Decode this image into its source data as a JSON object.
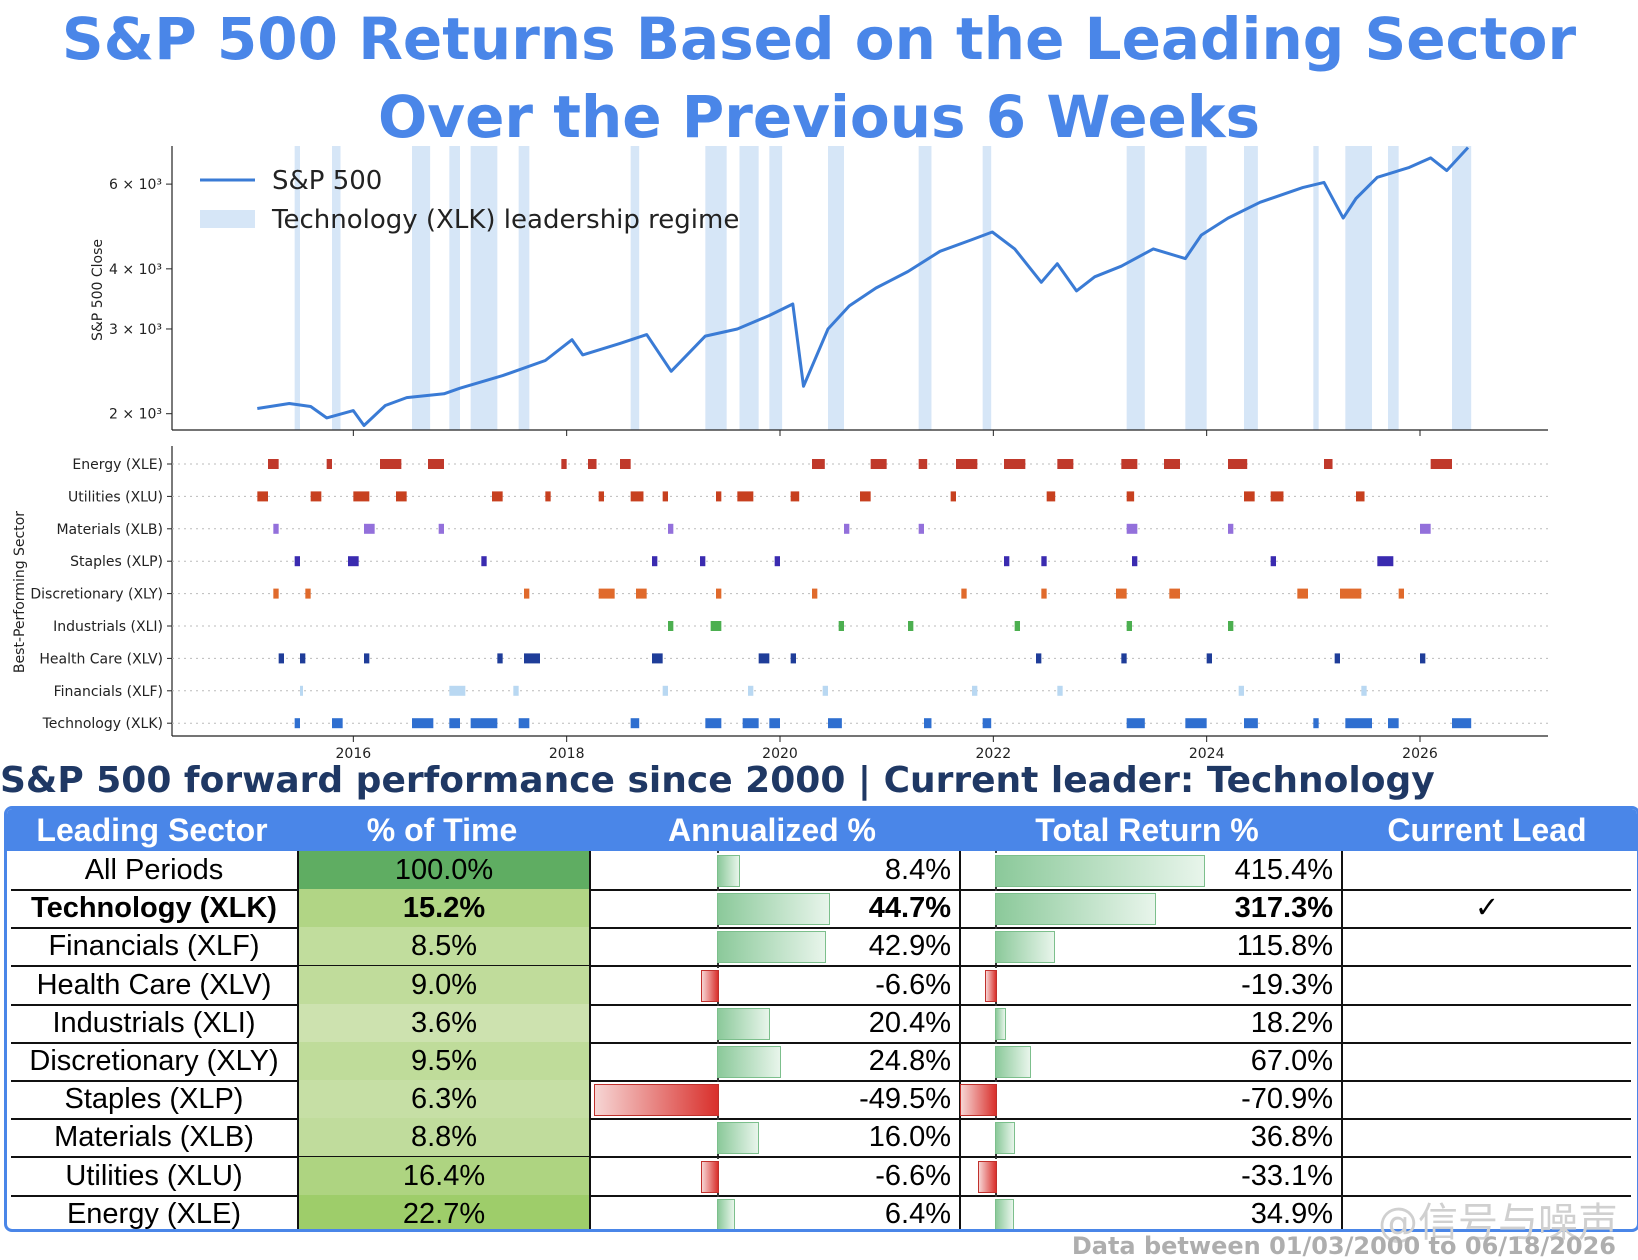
{
  "title": "S&P 500 Returns Based on the Leading Sector Over the Previous 6 Weeks",
  "subtitle": "S&P 500 forward performance since 2000 | Current leader: Technology",
  "footer": "Data between 01/03/2000 to 06/18/2026",
  "watermark": "@信号与噪声",
  "colors": {
    "accent": "#4a86e8",
    "line": "#3a7bd5",
    "regime": "#d6e6f7"
  },
  "chart_data": [
    {
      "type": "line",
      "ylabel": "S&P 500 Close",
      "y_scale": "log",
      "ylim": [
        1850,
        7200
      ],
      "xlim": [
        2014.3,
        2027.2
      ],
      "yticks": [
        {
          "v": 2000,
          "label": "2 × 10³"
        },
        {
          "v": 3000,
          "label": "3 × 10³"
        },
        {
          "v": 4000,
          "label": "4 × 10³"
        },
        {
          "v": 6000,
          "label": "6 × 10³"
        }
      ],
      "xticks": [
        "2016",
        "2018",
        "2020",
        "2022",
        "2024",
        "2026"
      ],
      "legend": {
        "placement": "top-left",
        "entries": [
          "S&P 500",
          "Technology (XLK) leadership regime"
        ]
      },
      "series": [
        {
          "name": "S&P 500",
          "x": [
            2015.1,
            2015.4,
            2015.6,
            2015.75,
            2016.0,
            2016.1,
            2016.3,
            2016.5,
            2016.85,
            2017.0,
            2017.4,
            2017.8,
            2018.05,
            2018.15,
            2018.5,
            2018.75,
            2018.98,
            2019.3,
            2019.6,
            2019.9,
            2020.12,
            2020.22,
            2020.45,
            2020.65,
            2020.9,
            2021.2,
            2021.5,
            2021.8,
            2021.99,
            2022.2,
            2022.45,
            2022.6,
            2022.78,
            2022.95,
            2023.2,
            2023.5,
            2023.8,
            2023.95,
            2024.2,
            2024.5,
            2024.9,
            2025.1,
            2025.28,
            2025.4,
            2025.6,
            2025.9,
            2026.1,
            2026.25,
            2026.45
          ],
          "y": [
            2050,
            2100,
            2070,
            1960,
            2030,
            1890,
            2080,
            2160,
            2200,
            2260,
            2400,
            2580,
            2850,
            2650,
            2800,
            2920,
            2450,
            2900,
            3000,
            3200,
            3380,
            2280,
            3000,
            3350,
            3650,
            3950,
            4350,
            4600,
            4770,
            4400,
            3750,
            4100,
            3600,
            3850,
            4050,
            4400,
            4200,
            4700,
            5100,
            5500,
            5900,
            6050,
            5100,
            5600,
            6200,
            6500,
            6800,
            6400,
            7150
          ]
        }
      ],
      "regimes": [
        [
          2015.45,
          2015.5
        ],
        [
          2015.8,
          2015.88
        ],
        [
          2016.55,
          2016.72
        ],
        [
          2016.9,
          2017.0
        ],
        [
          2017.1,
          2017.35
        ],
        [
          2017.55,
          2017.65
        ],
        [
          2018.6,
          2018.68
        ],
        [
          2019.3,
          2019.5
        ],
        [
          2019.62,
          2019.8
        ],
        [
          2019.9,
          2020.02
        ],
        [
          2020.45,
          2020.6
        ],
        [
          2021.3,
          2021.42
        ],
        [
          2021.9,
          2021.98
        ],
        [
          2023.25,
          2023.42
        ],
        [
          2023.8,
          2024.0
        ],
        [
          2024.35,
          2024.48
        ],
        [
          2025.0,
          2025.05
        ],
        [
          2025.3,
          2025.55
        ],
        [
          2025.7,
          2025.8
        ],
        [
          2026.3,
          2026.48
        ]
      ]
    },
    {
      "type": "scatter",
      "ylabel": "Best-Performing Sector",
      "xticks": [
        "2016",
        "2018",
        "2020",
        "2022",
        "2024",
        "2026"
      ],
      "categories": [
        "Energy (XLE)",
        "Utilities (XLU)",
        "Materials (XLB)",
        "Staples (XLP)",
        "Discretionary (XLY)",
        "Industrials (XLI)",
        "Health Care (XLV)",
        "Financials (XLF)",
        "Technology (XLK)"
      ],
      "marker_colors": [
        "#c0392b",
        "#c7401f",
        "#9370db",
        "#3a2bb0",
        "#e06a2c",
        "#4caf50",
        "#1f3d99",
        "#b9d8f2",
        "#2f6fd0"
      ],
      "periods": [
        [
          [
            2015.2,
            2015.3
          ],
          [
            2015.75,
            2015.8
          ],
          [
            2016.25,
            2016.45
          ],
          [
            2016.7,
            2016.85
          ],
          [
            2017.95,
            2018.0
          ],
          [
            2018.2,
            2018.28
          ],
          [
            2018.5,
            2018.6
          ],
          [
            2020.3,
            2020.42
          ],
          [
            2020.85,
            2021.0
          ],
          [
            2021.3,
            2021.38
          ],
          [
            2021.65,
            2021.85
          ],
          [
            2022.1,
            2022.3
          ],
          [
            2022.6,
            2022.75
          ],
          [
            2023.2,
            2023.35
          ],
          [
            2023.6,
            2023.75
          ],
          [
            2024.2,
            2024.38
          ],
          [
            2025.1,
            2025.18
          ],
          [
            2026.1,
            2026.3
          ]
        ],
        [
          [
            2015.1,
            2015.2
          ],
          [
            2015.6,
            2015.7
          ],
          [
            2016.0,
            2016.15
          ],
          [
            2016.4,
            2016.5
          ],
          [
            2017.3,
            2017.4
          ],
          [
            2017.8,
            2017.85
          ],
          [
            2018.3,
            2018.35
          ],
          [
            2018.6,
            2018.72
          ],
          [
            2018.9,
            2018.95
          ],
          [
            2019.4,
            2019.45
          ],
          [
            2019.6,
            2019.75
          ],
          [
            2020.1,
            2020.18
          ],
          [
            2020.75,
            2020.85
          ],
          [
            2021.6,
            2021.65
          ],
          [
            2022.5,
            2022.58
          ],
          [
            2023.25,
            2023.32
          ],
          [
            2024.35,
            2024.45
          ],
          [
            2024.6,
            2024.72
          ],
          [
            2025.4,
            2025.48
          ]
        ],
        [
          [
            2015.25,
            2015.3
          ],
          [
            2016.1,
            2016.2
          ],
          [
            2016.8,
            2016.85
          ],
          [
            2018.95,
            2019.0
          ],
          [
            2020.6,
            2020.65
          ],
          [
            2021.3,
            2021.35
          ],
          [
            2023.25,
            2023.35
          ],
          [
            2024.2,
            2024.25
          ],
          [
            2026.0,
            2026.1
          ]
        ],
        [
          [
            2015.45,
            2015.5
          ],
          [
            2015.95,
            2016.05
          ],
          [
            2017.2,
            2017.25
          ],
          [
            2018.8,
            2018.85
          ],
          [
            2019.25,
            2019.3
          ],
          [
            2019.95,
            2020.0
          ],
          [
            2022.1,
            2022.15
          ],
          [
            2022.45,
            2022.5
          ],
          [
            2023.3,
            2023.35
          ],
          [
            2024.6,
            2024.65
          ],
          [
            2025.6,
            2025.75
          ]
        ],
        [
          [
            2015.25,
            2015.3
          ],
          [
            2015.55,
            2015.6
          ],
          [
            2017.6,
            2017.65
          ],
          [
            2018.3,
            2018.45
          ],
          [
            2018.65,
            2018.75
          ],
          [
            2019.4,
            2019.45
          ],
          [
            2020.3,
            2020.35
          ],
          [
            2021.7,
            2021.75
          ],
          [
            2022.45,
            2022.5
          ],
          [
            2023.15,
            2023.25
          ],
          [
            2023.65,
            2023.75
          ],
          [
            2024.85,
            2024.95
          ],
          [
            2025.25,
            2025.45
          ],
          [
            2025.8,
            2025.85
          ]
        ],
        [
          [
            2018.95,
            2019.0
          ],
          [
            2019.35,
            2019.45
          ],
          [
            2020.55,
            2020.6
          ],
          [
            2021.2,
            2021.25
          ],
          [
            2022.2,
            2022.25
          ],
          [
            2023.25,
            2023.3
          ],
          [
            2024.2,
            2024.25
          ]
        ],
        [
          [
            2015.3,
            2015.35
          ],
          [
            2015.5,
            2015.55
          ],
          [
            2016.1,
            2016.15
          ],
          [
            2017.35,
            2017.4
          ],
          [
            2017.6,
            2017.75
          ],
          [
            2018.8,
            2018.9
          ],
          [
            2019.8,
            2019.9
          ],
          [
            2020.1,
            2020.15
          ],
          [
            2022.4,
            2022.45
          ],
          [
            2023.2,
            2023.25
          ],
          [
            2024.0,
            2024.05
          ],
          [
            2025.2,
            2025.25
          ],
          [
            2026.0,
            2026.05
          ]
        ],
        [
          [
            2015.5,
            2015.52
          ],
          [
            2016.9,
            2017.05
          ],
          [
            2017.5,
            2017.55
          ],
          [
            2018.9,
            2018.95
          ],
          [
            2019.7,
            2019.75
          ],
          [
            2020.4,
            2020.45
          ],
          [
            2021.8,
            2021.85
          ],
          [
            2022.6,
            2022.65
          ],
          [
            2024.3,
            2024.35
          ],
          [
            2025.45,
            2025.5
          ]
        ],
        [
          [
            2015.45,
            2015.5
          ],
          [
            2015.8,
            2015.9
          ],
          [
            2016.55,
            2016.75
          ],
          [
            2016.9,
            2017.0
          ],
          [
            2017.1,
            2017.35
          ],
          [
            2017.55,
            2017.65
          ],
          [
            2018.6,
            2018.68
          ],
          [
            2019.3,
            2019.45
          ],
          [
            2019.65,
            2019.8
          ],
          [
            2019.9,
            2020.0
          ],
          [
            2020.45,
            2020.58
          ],
          [
            2021.35,
            2021.42
          ],
          [
            2021.9,
            2021.98
          ],
          [
            2023.25,
            2023.42
          ],
          [
            2023.8,
            2024.0
          ],
          [
            2024.35,
            2024.48
          ],
          [
            2025.0,
            2025.05
          ],
          [
            2025.3,
            2025.55
          ],
          [
            2025.7,
            2025.8
          ],
          [
            2026.3,
            2026.48
          ]
        ]
      ]
    },
    {
      "type": "table",
      "columns": [
        "Leading Sector",
        "% of Time",
        "Annualized %",
        "Total Return %",
        "Current Lead"
      ],
      "rows": [
        {
          "sector": "All Periods",
          "pct": "100.0%",
          "pct_v": 100.0,
          "ann": "8.4%",
          "ann_v": 8.4,
          "tot": "415.4%",
          "tot_v": 415.4,
          "lead": "",
          "bold": false
        },
        {
          "sector": "Technology (XLK)",
          "pct": "15.2%",
          "pct_v": 15.2,
          "ann": "44.7%",
          "ann_v": 44.7,
          "tot": "317.3%",
          "tot_v": 317.3,
          "lead": "✓",
          "bold": true
        },
        {
          "sector": "Financials (XLF)",
          "pct": "8.5%",
          "pct_v": 8.5,
          "ann": "42.9%",
          "ann_v": 42.9,
          "tot": "115.8%",
          "tot_v": 115.8,
          "lead": "",
          "bold": false
        },
        {
          "sector": "Health Care (XLV)",
          "pct": "9.0%",
          "pct_v": 9.0,
          "ann": "-6.6%",
          "ann_v": -6.6,
          "tot": "-19.3%",
          "tot_v": -19.3,
          "lead": "",
          "bold": false
        },
        {
          "sector": "Industrials (XLI)",
          "pct": "3.6%",
          "pct_v": 3.6,
          "ann": "20.4%",
          "ann_v": 20.4,
          "tot": "18.2%",
          "tot_v": 18.2,
          "lead": "",
          "bold": false
        },
        {
          "sector": "Discretionary (XLY)",
          "pct": "9.5%",
          "pct_v": 9.5,
          "ann": "24.8%",
          "ann_v": 24.8,
          "tot": "67.0%",
          "tot_v": 67.0,
          "lead": "",
          "bold": false
        },
        {
          "sector": "Staples (XLP)",
          "pct": "6.3%",
          "pct_v": 6.3,
          "ann": "-49.5%",
          "ann_v": -49.5,
          "tot": "-70.9%",
          "tot_v": -70.9,
          "lead": "",
          "bold": false
        },
        {
          "sector": "Materials (XLB)",
          "pct": "8.8%",
          "pct_v": 8.8,
          "ann": "16.0%",
          "ann_v": 16.0,
          "tot": "36.8%",
          "tot_v": 36.8,
          "lead": "",
          "bold": false
        },
        {
          "sector": "Utilities (XLU)",
          "pct": "16.4%",
          "pct_v": 16.4,
          "ann": "-6.6%",
          "ann_v": -6.6,
          "tot": "-33.1%",
          "tot_v": -33.1,
          "lead": "",
          "bold": false
        },
        {
          "sector": "Energy (XLE)",
          "pct": "22.7%",
          "pct_v": 22.7,
          "ann": "6.4%",
          "ann_v": 6.4,
          "tot": "34.9%",
          "tot_v": 34.9,
          "lead": "",
          "bold": false
        }
      ]
    }
  ]
}
